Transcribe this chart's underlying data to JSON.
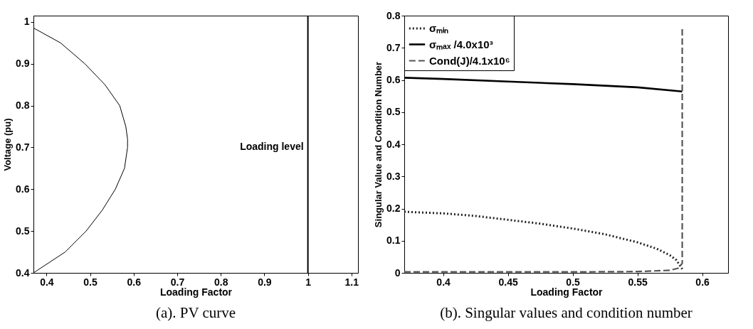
{
  "chart_data": [
    {
      "type": "line",
      "title": "(a). PV curve",
      "xlabel": "Loading Factor",
      "ylabel": "Voltage (pu)",
      "xlim": [
        0.37,
        1.115
      ],
      "ylim": [
        0.4,
        1.015
      ],
      "xticks": [
        0.4,
        0.5,
        0.6,
        0.7,
        0.8,
        0.9,
        1,
        1.1
      ],
      "yticks": [
        0.4,
        0.5,
        0.6,
        0.7,
        0.8,
        0.9,
        1
      ],
      "series": [
        {
          "color": "#000000",
          "line_style": "solid",
          "x": [
            0.371,
            0.432,
            0.488,
            0.534,
            0.568,
            0.582,
            0.586,
            0.586,
            0.579,
            0.558,
            0.528,
            0.491,
            0.443,
            0.37
          ],
          "values": [
            0.985,
            0.95,
            0.9,
            0.85,
            0.8,
            0.75,
            0.72,
            0.7,
            0.65,
            0.6,
            0.55,
            0.5,
            0.45,
            0.4
          ]
        }
      ],
      "ref_lines": [
        {
          "axis": "x",
          "value": 1,
          "label": "Loading level",
          "color": "#000000"
        }
      ]
    },
    {
      "type": "line",
      "title": "(b). Singular values and condition number",
      "xlabel": "Loading Factor",
      "ylabel": "Singular Value and Condition Number",
      "xlim": [
        0.37,
        0.62
      ],
      "ylim": [
        0,
        0.8
      ],
      "xticks": [
        0.4,
        0.45,
        0.5,
        0.55,
        0.6
      ],
      "yticks": [
        0,
        0.1,
        0.2,
        0.3,
        0.4,
        0.5,
        0.6,
        0.7,
        0.8
      ],
      "legend": "top left",
      "series": [
        {
          "name": "σₘᵢₙ",
          "color": "#222222",
          "line_style": "dotted",
          "x": [
            0.37,
            0.4,
            0.425,
            0.45,
            0.475,
            0.5,
            0.525,
            0.55,
            0.565,
            0.575,
            0.58,
            0.5846
          ],
          "values": [
            0.19,
            0.185,
            0.177,
            0.165,
            0.153,
            0.138,
            0.12,
            0.095,
            0.075,
            0.055,
            0.04,
            0.012
          ]
        },
        {
          "name": "σₘₐₓ /4.0x10³",
          "color": "#000000",
          "line_style": "solid",
          "x": [
            0.37,
            0.4,
            0.45,
            0.5,
            0.55,
            0.5846
          ],
          "values": [
            0.607,
            0.603,
            0.595,
            0.587,
            0.577,
            0.564
          ]
        },
        {
          "name": "Cond(J)/4.1x10⁶",
          "color": "#555555",
          "line_style": "dashed",
          "x": [
            0.37,
            0.5,
            0.55,
            0.575,
            0.582,
            0.5846,
            0.5846
          ],
          "values": [
            0.003,
            0.003,
            0.004,
            0.008,
            0.015,
            0.03,
            0.765
          ]
        }
      ]
    }
  ]
}
